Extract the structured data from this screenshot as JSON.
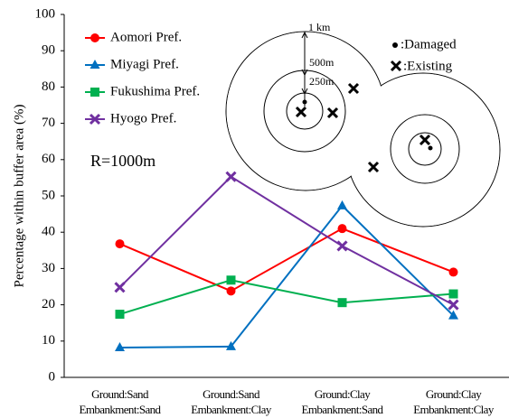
{
  "chart_data": {
    "type": "line",
    "y_label": "Percentage within buffer area (%)",
    "categories": [
      [
        "Ground:Sand",
        "Embankment:Sand"
      ],
      [
        "Ground:Sand",
        "Embankment:Clay"
      ],
      [
        "Ground:Clay",
        "Embankment:Sand"
      ],
      [
        "Ground:Clay",
        "Embankment:Clay"
      ]
    ],
    "series": [
      {
        "name": "Aomori Pref.",
        "color": "#ff0000",
        "marker": "circle",
        "values": [
          36.8,
          23.8,
          41,
          29
        ]
      },
      {
        "name": "Miyagi Pref.",
        "color": "#0070c0",
        "marker": "triangle",
        "values": [
          8.2,
          8.5,
          47.3,
          17
        ]
      },
      {
        "name": "Fukushima Pref.",
        "color": "#00b050",
        "marker": "square",
        "values": [
          17.4,
          26.8,
          20.6,
          23
        ]
      },
      {
        "name": "Hyogo Pref.",
        "color": "#7030a0",
        "marker": "x",
        "values": [
          24.8,
          55.3,
          36.2,
          20
        ]
      }
    ],
    "ylim": [
      0,
      100
    ],
    "yticks": [
      0,
      10,
      20,
      30,
      40,
      50,
      60,
      70,
      80,
      90,
      100
    ],
    "grid": false,
    "legend": "upper-left",
    "annotations": [
      "R=1000m",
      "1 km",
      "500m",
      "250m",
      ":Damaged",
      ":Existing"
    ]
  }
}
